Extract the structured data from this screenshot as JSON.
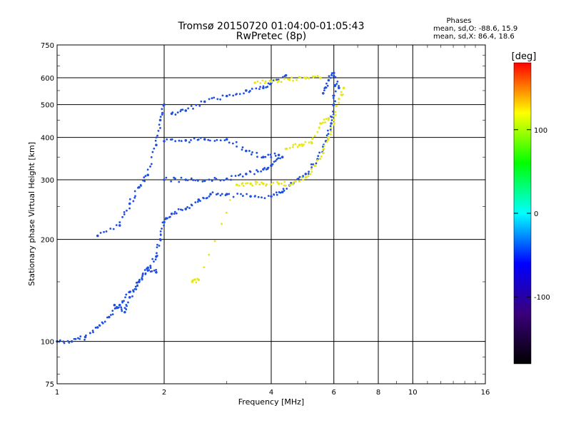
{
  "chart_data": {
    "type": "scatter",
    "title": "Tromsø 20150720 01:04:00-01:05:43",
    "subtitle": "RwPretec (8p)",
    "stats": {
      "heading": "Phases",
      "o_mode": "mean, sd,O:  -88.6, 15.9",
      "x_mode": "mean, sd,X:   86.4, 18.6"
    },
    "xlabel": "Frequency [MHz]",
    "ylabel": "Stationary phase Virtual Height [km]",
    "x_scale": "log",
    "y_scale": "log",
    "xlim": [
      1,
      16
    ],
    "ylim": [
      75,
      750
    ],
    "x_ticks": [
      1,
      2,
      4,
      6,
      8,
      10,
      16
    ],
    "y_ticks": [
      75,
      100,
      200,
      300,
      400,
      500,
      600,
      750
    ],
    "x_grid": [
      2,
      4,
      6,
      8,
      10
    ],
    "y_grid": [
      100,
      200,
      300,
      400,
      500,
      600
    ],
    "grid": true,
    "colorbar": {
      "label": "[deg]",
      "range": [
        -180,
        180
      ],
      "ticks": [
        100,
        0,
        -100
      ],
      "colors": [
        "#ff0000",
        "#ffff00",
        "#00ff00",
        "#00ffff",
        "#0000ff",
        "#3a007a",
        "#000000"
      ],
      "placement": "right"
    },
    "series": [
      {
        "mode": "O",
        "color": "#1f4fe0",
        "traces": [
          {
            "points": [
              [
                1.0,
                100
              ],
              [
                1.1,
                100
              ],
              [
                1.2,
                103
              ],
              [
                1.3,
                110
              ],
              [
                1.4,
                118
              ],
              [
                1.5,
                128
              ],
              [
                1.6,
                140
              ],
              [
                1.7,
                150
              ],
              [
                1.8,
                162
              ],
              [
                1.9,
                178
              ],
              [
                1.95,
                200
              ],
              [
                2.0,
                225
              ],
              [
                2.1,
                238
              ],
              [
                2.3,
                246
              ],
              [
                2.5,
                262
              ],
              [
                2.7,
                272
              ],
              [
                3.0,
                272
              ],
              [
                3.5,
                268
              ],
              [
                4.0,
                268
              ],
              [
                4.3,
                276
              ],
              [
                4.6,
                292
              ],
              [
                5.0,
                312
              ],
              [
                5.4,
                345
              ],
              [
                5.7,
                390
              ],
              [
                5.9,
                440
              ],
              [
                6.0,
                500
              ],
              [
                6.05,
                570
              ]
            ]
          },
          {
            "points": [
              [
                1.3,
                205
              ],
              [
                1.5,
                220
              ],
              [
                1.6,
                255
              ],
              [
                1.7,
                285
              ],
              [
                1.8,
                310
              ],
              [
                1.9,
                380
              ],
              [
                1.95,
                450
              ],
              [
                2.0,
                500
              ]
            ]
          },
          {
            "points": [
              [
                1.45,
                128
              ],
              [
                1.55,
                122
              ],
              [
                1.6,
                135
              ],
              [
                1.7,
                150
              ],
              [
                1.8,
                165
              ],
              [
                1.9,
                160
              ]
            ]
          },
          {
            "points": [
              [
                2.0,
                300
              ],
              [
                2.3,
                300
              ],
              [
                2.6,
                298
              ],
              [
                3.0,
                302
              ],
              [
                3.4,
                312
              ],
              [
                3.8,
                322
              ],
              [
                4.0,
                330
              ],
              [
                4.3,
                350
              ]
            ]
          },
          {
            "points": [
              [
                2.0,
                390
              ],
              [
                2.3,
                392
              ],
              [
                2.6,
                395
              ],
              [
                3.0,
                395
              ],
              [
                3.4,
                365
              ],
              [
                3.8,
                350
              ],
              [
                4.2,
                355
              ]
            ]
          },
          {
            "points": [
              [
                2.1,
                470
              ],
              [
                2.3,
                480
              ],
              [
                2.6,
                510
              ],
              [
                3.0,
                530
              ],
              [
                3.4,
                550
              ],
              [
                3.8,
                560
              ],
              [
                4.0,
                580
              ],
              [
                4.4,
                610
              ]
            ]
          },
          {
            "points": [
              [
                5.6,
                540
              ],
              [
                5.8,
                590
              ],
              [
                6.0,
                620
              ],
              [
                6.2,
                560
              ]
            ]
          }
        ]
      },
      {
        "mode": "X",
        "color": "#e6e61a",
        "traces": [
          {
            "points": [
              [
                2.4,
                150
              ],
              [
                2.5,
                152
              ],
              [
                3.2,
                290
              ],
              [
                3.5,
                292
              ],
              [
                3.8,
                292
              ],
              [
                4.2,
                292
              ],
              [
                4.6,
                292
              ],
              [
                5.0,
                305
              ],
              [
                5.3,
                330
              ],
              [
                5.6,
                360
              ],
              [
                5.8,
                400
              ],
              [
                6.0,
                450
              ],
              [
                6.2,
                520
              ],
              [
                6.4,
                560
              ]
            ]
          },
          {
            "points": [
              [
                4.4,
                370
              ],
              [
                4.8,
                380
              ],
              [
                5.2,
                385
              ],
              [
                5.5,
                440
              ],
              [
                5.8,
                455
              ]
            ]
          },
          {
            "points": [
              [
                3.6,
                580
              ],
              [
                4.0,
                585
              ],
              [
                4.5,
                592
              ],
              [
                5.0,
                598
              ],
              [
                5.5,
                600
              ]
            ]
          }
        ]
      }
    ]
  }
}
